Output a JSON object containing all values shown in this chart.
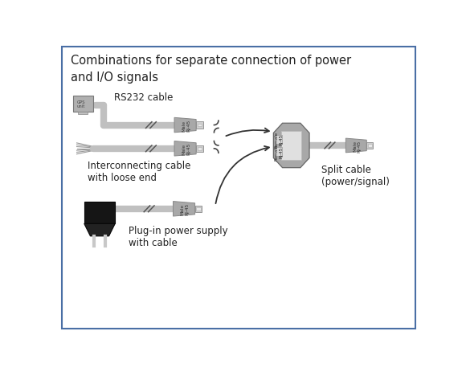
{
  "title": "Combinations for separate connection of power\nand I/O signals",
  "title_fontsize": 10.5,
  "background_color": "#ffffff",
  "border_color": "#4a6fa5",
  "text_color": "#222222",
  "gray_cable": "#c0c0c0",
  "gray_connector": "#a8a8a8",
  "gray_connector_dark": "#888888",
  "gray_plug": "#d0d0d0",
  "gray_device": "#b8b8b8",
  "black_body": "#111111",
  "label_rs232": "RS232 cable",
  "label_interconnect": "Interconnecting cable\nwith loose end",
  "label_power": "Plug-in power supply\nwith cable",
  "label_split": "Split cable\n(power/signal)"
}
